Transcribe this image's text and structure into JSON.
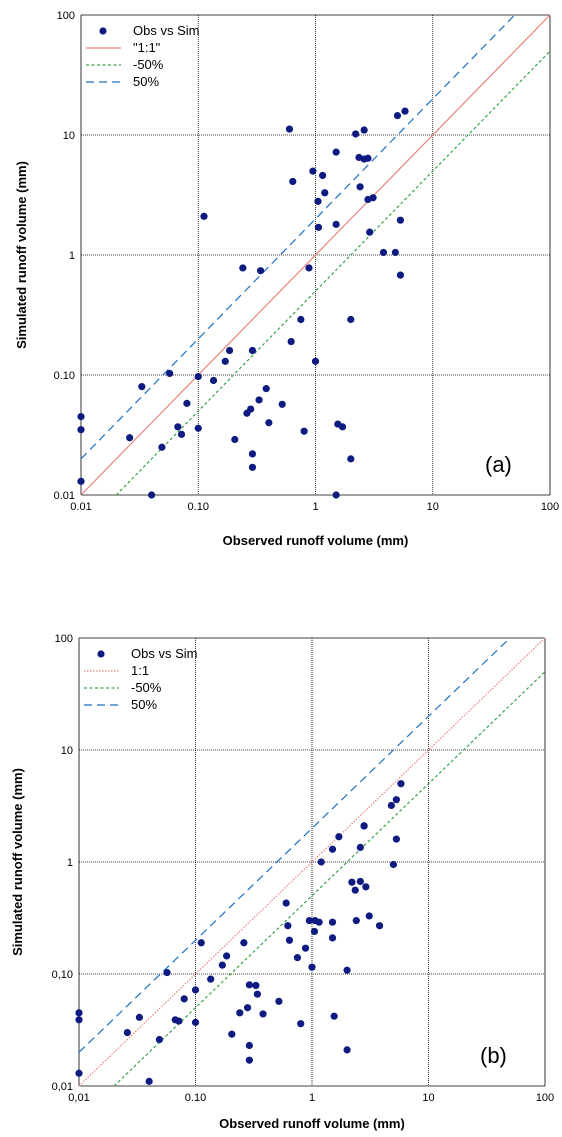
{
  "colors": {
    "points": "#0d1a80",
    "one_to_one": "#e8837c",
    "minus50": "#3aa24a",
    "plus50": "#1f6fc1",
    "grid": "#000000"
  },
  "chart_data": [
    {
      "type": "scatter",
      "panel_label": "(a)",
      "xlabel": "Observed runoff volume (mm)",
      "ylabel": "Simulated runoff volume (mm)",
      "xscale": "log",
      "yscale": "log",
      "xlim": [
        0.01,
        100
      ],
      "ylim": [
        0.01,
        100
      ],
      "x_ticks": [
        "0.01",
        "0.10",
        "1",
        "10",
        "100"
      ],
      "y_ticks": [
        "0.01",
        "0.10",
        "1",
        "10",
        "100"
      ],
      "grid": true,
      "legend_position": "top-left",
      "series": [
        {
          "name": "Obs vs Sim",
          "kind": "markers",
          "points": [
            [
              0.01,
              0.045
            ],
            [
              0.01,
              0.035
            ],
            [
              0.01,
              0.013
            ],
            [
              0.026,
              0.03
            ],
            [
              0.033,
              0.08
            ],
            [
              0.04,
              0.01
            ],
            [
              0.049,
              0.025
            ],
            [
              0.057,
              0.103
            ],
            [
              0.067,
              0.037
            ],
            [
              0.072,
              0.032
            ],
            [
              0.08,
              0.058
            ],
            [
              0.1,
              0.097
            ],
            [
              0.1,
              0.036
            ],
            [
              0.112,
              2.1
            ],
            [
              0.135,
              0.09
            ],
            [
              0.17,
              0.13
            ],
            [
              0.185,
              0.16
            ],
            [
              0.205,
              0.029
            ],
            [
              0.24,
              0.78
            ],
            [
              0.26,
              0.048
            ],
            [
              0.28,
              0.052
            ],
            [
              0.29,
              0.022
            ],
            [
              0.29,
              0.017
            ],
            [
              0.29,
              0.16
            ],
            [
              0.33,
              0.062
            ],
            [
              0.34,
              0.74
            ],
            [
              0.38,
              0.077
            ],
            [
              0.4,
              0.04
            ],
            [
              0.52,
              0.057
            ],
            [
              0.6,
              11.2
            ],
            [
              0.62,
              0.19
            ],
            [
              0.64,
              4.1
            ],
            [
              0.75,
              0.29
            ],
            [
              0.8,
              0.034
            ],
            [
              0.88,
              0.78
            ],
            [
              0.95,
              5.0
            ],
            [
              1.0,
              0.13
            ],
            [
              1.05,
              2.8
            ],
            [
              1.06,
              1.7
            ],
            [
              1.15,
              4.6
            ],
            [
              1.2,
              3.3
            ],
            [
              1.5,
              0.01
            ],
            [
              1.5,
              7.2
            ],
            [
              1.5,
              1.8
            ],
            [
              1.55,
              0.039
            ],
            [
              1.7,
              0.037
            ],
            [
              2.0,
              0.29
            ],
            [
              2.0,
              0.02
            ],
            [
              2.2,
              10.2
            ],
            [
              2.35,
              6.5
            ],
            [
              2.4,
              3.7
            ],
            [
              2.6,
              11.0
            ],
            [
              2.6,
              6.3
            ],
            [
              2.8,
              6.4
            ],
            [
              2.8,
              2.9
            ],
            [
              2.9,
              1.55
            ],
            [
              3.1,
              3.0
            ],
            [
              3.8,
              1.05
            ],
            [
              4.8,
              1.05
            ],
            [
              5.0,
              14.5
            ],
            [
              5.3,
              0.68
            ],
            [
              5.3,
              1.95
            ],
            [
              5.8,
              15.8
            ]
          ]
        },
        {
          "name": "\"1:1\"",
          "kind": "line",
          "dash": "solid",
          "points": [
            [
              0.01,
              0.01
            ],
            [
              100,
              100
            ]
          ]
        },
        {
          "name": "-50%",
          "kind": "line",
          "dash": "short",
          "points": [
            [
              0.02,
              0.01
            ],
            [
              100,
              50
            ]
          ]
        },
        {
          "name": "50%",
          "kind": "line",
          "dash": "long",
          "points": [
            [
              0.01,
              0.02
            ],
            [
              50,
              100
            ]
          ]
        }
      ]
    },
    {
      "type": "scatter",
      "panel_label": "(b)",
      "xlabel": "Observed runoff volume (mm)",
      "ylabel": "Simulated runoff volume (mm)",
      "xscale": "log",
      "yscale": "log",
      "xlim": [
        0.01,
        100
      ],
      "ylim": [
        0.01,
        100
      ],
      "x_ticks": [
        "0,01",
        "0.10",
        "1",
        "10",
        "100"
      ],
      "y_ticks": [
        "0,01",
        "0,10",
        "1",
        "10",
        "100"
      ],
      "grid": true,
      "legend_position": "top-left",
      "series": [
        {
          "name": "Obs vs Sim",
          "kind": "markers",
          "points": [
            [
              0.01,
              0.045
            ],
            [
              0.01,
              0.039
            ],
            [
              0.01,
              0.013
            ],
            [
              0.026,
              0.03
            ],
            [
              0.033,
              0.041
            ],
            [
              0.04,
              0.011
            ],
            [
              0.049,
              0.026
            ],
            [
              0.057,
              0.103
            ],
            [
              0.067,
              0.039
            ],
            [
              0.072,
              0.038
            ],
            [
              0.08,
              0.06
            ],
            [
              0.1,
              0.072
            ],
            [
              0.1,
              0.037
            ],
            [
              0.112,
              0.19
            ],
            [
              0.135,
              0.09
            ],
            [
              0.17,
              0.12
            ],
            [
              0.185,
              0.145
            ],
            [
              0.205,
              0.029
            ],
            [
              0.24,
              0.045
            ],
            [
              0.26,
              0.19
            ],
            [
              0.28,
              0.05
            ],
            [
              0.29,
              0.023
            ],
            [
              0.29,
              0.017
            ],
            [
              0.29,
              0.08
            ],
            [
              0.33,
              0.079
            ],
            [
              0.34,
              0.066
            ],
            [
              0.38,
              0.044
            ],
            [
              0.52,
              0.057
            ],
            [
              0.6,
              0.43
            ],
            [
              0.62,
              0.27
            ],
            [
              0.64,
              0.2
            ],
            [
              0.75,
              0.14
            ],
            [
              0.8,
              0.036
            ],
            [
              0.88,
              0.17
            ],
            [
              0.95,
              0.3
            ],
            [
              1.0,
              0.115
            ],
            [
              1.05,
              0.24
            ],
            [
              1.06,
              0.3
            ],
            [
              1.15,
              0.29
            ],
            [
              1.2,
              1.0
            ],
            [
              1.5,
              0.29
            ],
            [
              1.5,
              1.3
            ],
            [
              1.5,
              0.21
            ],
            [
              1.55,
              0.042
            ],
            [
              1.7,
              1.68
            ],
            [
              2.0,
              0.108
            ],
            [
              2.0,
              0.021
            ],
            [
              2.2,
              0.66
            ],
            [
              2.35,
              0.56
            ],
            [
              2.4,
              0.3
            ],
            [
              2.6,
              0.67
            ],
            [
              2.6,
              1.35
            ],
            [
              2.8,
              2.1
            ],
            [
              2.8,
              2.1
            ],
            [
              2.9,
              0.6
            ],
            [
              3.1,
              0.33
            ],
            [
              3.8,
              0.27
            ],
            [
              4.8,
              3.2
            ],
            [
              5.0,
              0.95
            ],
            [
              5.3,
              1.6
            ],
            [
              5.3,
              3.6
            ],
            [
              5.8,
              5.0
            ]
          ]
        },
        {
          "name": "1:1",
          "kind": "line",
          "dash": "dotted",
          "points": [
            [
              0.01,
              0.01
            ],
            [
              100,
              100
            ]
          ]
        },
        {
          "name": "-50%",
          "kind": "line",
          "dash": "short",
          "points": [
            [
              0.02,
              0.01
            ],
            [
              100,
              50
            ]
          ]
        },
        {
          "name": "50%",
          "kind": "line",
          "dash": "long",
          "points": [
            [
              0.01,
              0.02
            ],
            [
              50,
              100
            ]
          ]
        }
      ]
    }
  ]
}
